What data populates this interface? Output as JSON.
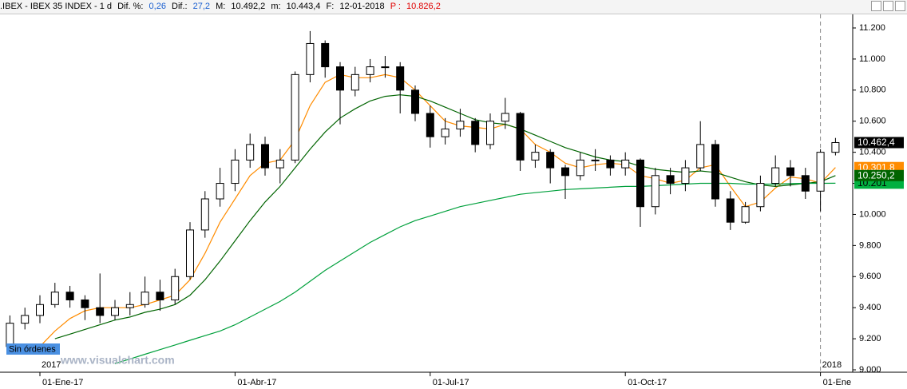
{
  "header": [
    ".IBEX - IBEX 35 INDEX - 1 d",
    "Dif. %:",
    "0,26",
    "Dif.:",
    "27,2",
    "M:",
    "10.492,2",
    "m:",
    "10.443,4",
    "F:",
    "12-01-2018",
    "P :",
    "10.826,2"
  ],
  "status_label": "Sin órdenes",
  "watermark": "www.visualchart.com",
  "chart_data": {
    "type": "candlestick",
    "categories": [
      null,
      null,
      "01-Ene-17",
      null,
      null,
      null,
      null,
      null,
      null,
      null,
      null,
      null,
      null,
      null,
      null,
      "01-Abr-17",
      null,
      null,
      null,
      null,
      null,
      null,
      null,
      null,
      null,
      null,
      null,
      null,
      "01-Jul-17",
      null,
      null,
      null,
      null,
      null,
      null,
      null,
      null,
      null,
      null,
      null,
      null,
      "01-Oct-17",
      null,
      null,
      null,
      null,
      null,
      null,
      null,
      null,
      null,
      null,
      null,
      null,
      "01-Ene",
      null
    ],
    "year_labels": [
      "2017",
      "2018"
    ],
    "open": [
      9150,
      9300,
      9350,
      9420,
      9500,
      9450,
      9400,
      9350,
      9400,
      9420,
      9500,
      9450,
      9600,
      9900,
      10100,
      10200,
      10350,
      10450,
      10300,
      10350,
      10900,
      11100,
      10950,
      10800,
      10900,
      10950,
      10950,
      10800,
      10650,
      10500,
      10550,
      10600,
      10450,
      10600,
      10650,
      10350,
      10400,
      10300,
      10250,
      10350,
      10350,
      10300,
      10350,
      10050,
      10250,
      10200,
      10300,
      10450,
      10100,
      9950,
      10050,
      10200,
      10300,
      10250,
      10150,
      10400
    ],
    "high": [
      9350,
      9400,
      9480,
      9560,
      9540,
      9480,
      9620,
      9450,
      9500,
      9600,
      9580,
      9650,
      9950,
      10150,
      10300,
      10420,
      10520,
      10500,
      10420,
      10920,
      11180,
      11120,
      10980,
      10950,
      11000,
      11020,
      10980,
      10830,
      10700,
      10620,
      10680,
      10620,
      10650,
      10750,
      10660,
      10450,
      10420,
      10320,
      10400,
      10420,
      10380,
      10400,
      10360,
      10300,
      10300,
      10350,
      10600,
      10480,
      10150,
      10080,
      10250,
      10380,
      10350,
      10300,
      10420,
      10492.2
    ],
    "low": [
      9120,
      9260,
      9300,
      9400,
      9400,
      9320,
      9300,
      9320,
      9350,
      9400,
      9380,
      9420,
      9580,
      9850,
      10050,
      10150,
      10300,
      10250,
      10200,
      10330,
      10850,
      10880,
      10580,
      10760,
      10850,
      10880,
      10650,
      10600,
      10430,
      10450,
      10500,
      10400,
      10420,
      10550,
      10280,
      10300,
      10200,
      10100,
      10220,
      10280,
      10250,
      10250,
      9920,
      10000,
      10130,
      10150,
      10280,
      10050,
      9900,
      9940,
      10020,
      10180,
      10180,
      10100,
      10020,
      10380
    ],
    "close": [
      9300,
      9350,
      9420,
      9500,
      9450,
      9400,
      9350,
      9400,
      9420,
      9500,
      9450,
      9600,
      9900,
      10100,
      10200,
      10350,
      10450,
      10300,
      10350,
      10900,
      11100,
      10950,
      10800,
      10900,
      10950,
      10950,
      10800,
      10650,
      10500,
      10550,
      10600,
      10450,
      10600,
      10650,
      10350,
      10400,
      10300,
      10250,
      10350,
      10350,
      10300,
      10350,
      10050,
      10250,
      10200,
      10300,
      10450,
      10100,
      9950,
      10050,
      10200,
      10300,
      10250,
      10150,
      10400,
      10462.4
    ],
    "up_color": "#ffffff",
    "down_color": "#000000",
    "wick_color": "#000000",
    "series": [
      {
        "color": "#ff8c00",
        "values": [
          null,
          null,
          9150,
          9250,
          9330,
          9380,
          9400,
          9400,
          9400,
          9420,
          9450,
          9480,
          9580,
          9750,
          9950,
          10100,
          10250,
          10330,
          10350,
          10480,
          10700,
          10850,
          10900,
          10880,
          10880,
          10900,
          10880,
          10800,
          10700,
          10600,
          10570,
          10560,
          10550,
          10580,
          10550,
          10450,
          10400,
          10330,
          10300,
          10320,
          10330,
          10320,
          10250,
          10230,
          10200,
          10220,
          10300,
          10320,
          10180,
          10050,
          10080,
          10170,
          10240,
          10230,
          10200,
          10301.8
        ]
      },
      {
        "color": "#006400",
        "values": [
          null,
          null,
          null,
          9200,
          9230,
          9260,
          9290,
          9320,
          9340,
          9370,
          9390,
          9420,
          9480,
          9580,
          9700,
          9830,
          9960,
          10080,
          10180,
          10300,
          10420,
          10530,
          10620,
          10680,
          10730,
          10760,
          10770,
          10760,
          10730,
          10690,
          10650,
          10610,
          10590,
          10580,
          10550,
          10510,
          10470,
          10430,
          10400,
          10370,
          10350,
          10340,
          10310,
          10290,
          10280,
          10270,
          10280,
          10270,
          10240,
          10210,
          10190,
          10180,
          10190,
          10200,
          10210,
          10250.2
        ]
      },
      {
        "color": "#00a03c",
        "values": [
          null,
          null,
          null,
          null,
          null,
          null,
          null,
          9040,
          9070,
          9100,
          9130,
          9160,
          9190,
          9220,
          9250,
          9290,
          9340,
          9390,
          9440,
          9500,
          9570,
          9640,
          9700,
          9760,
          9820,
          9870,
          9920,
          9960,
          9990,
          10020,
          10050,
          10070,
          10090,
          10110,
          10130,
          10140,
          10150,
          10160,
          10165,
          10170,
          10175,
          10180,
          10180,
          10185,
          10190,
          10195,
          10200,
          10200,
          10200,
          10195,
          10195,
          10195,
          10198,
          10200,
          10200,
          10201
        ]
      }
    ],
    "price_tags": [
      {
        "value": 10301.8,
        "label": "10.301,8",
        "color": "#ff8c00",
        "text_color": "#ffffff"
      },
      {
        "value": 10201,
        "label": "10.201",
        "color": "#00b040",
        "text_color": "#000000"
      },
      {
        "value": 10250.2,
        "label": "10.250,2",
        "color": "#006400",
        "text_color": "#ffffff"
      },
      {
        "value": 10462.4,
        "label": "10.462,4",
        "color": "#000000",
        "text_color": "#ffffff"
      }
    ],
    "ylim": [
      9000,
      11200
    ],
    "yticks": [
      {
        "value": 9000,
        "label": "9.000"
      },
      {
        "value": 9200,
        "label": "9.200"
      },
      {
        "value": 9400,
        "label": "9.400"
      },
      {
        "value": 9600,
        "label": "9.600"
      },
      {
        "value": 9800,
        "label": "9.800"
      },
      {
        "value": 10000,
        "label": "10.000"
      },
      {
        "value": 10200,
        "label": "10.200"
      },
      {
        "value": 10400,
        "label": "10.400"
      },
      {
        "value": 10600,
        "label": "10.600"
      },
      {
        "value": 10800,
        "label": "10.800"
      },
      {
        "value": 11000,
        "label": "11.000"
      },
      {
        "value": 11200,
        "label": "11.200"
      }
    ],
    "grid": false
  }
}
